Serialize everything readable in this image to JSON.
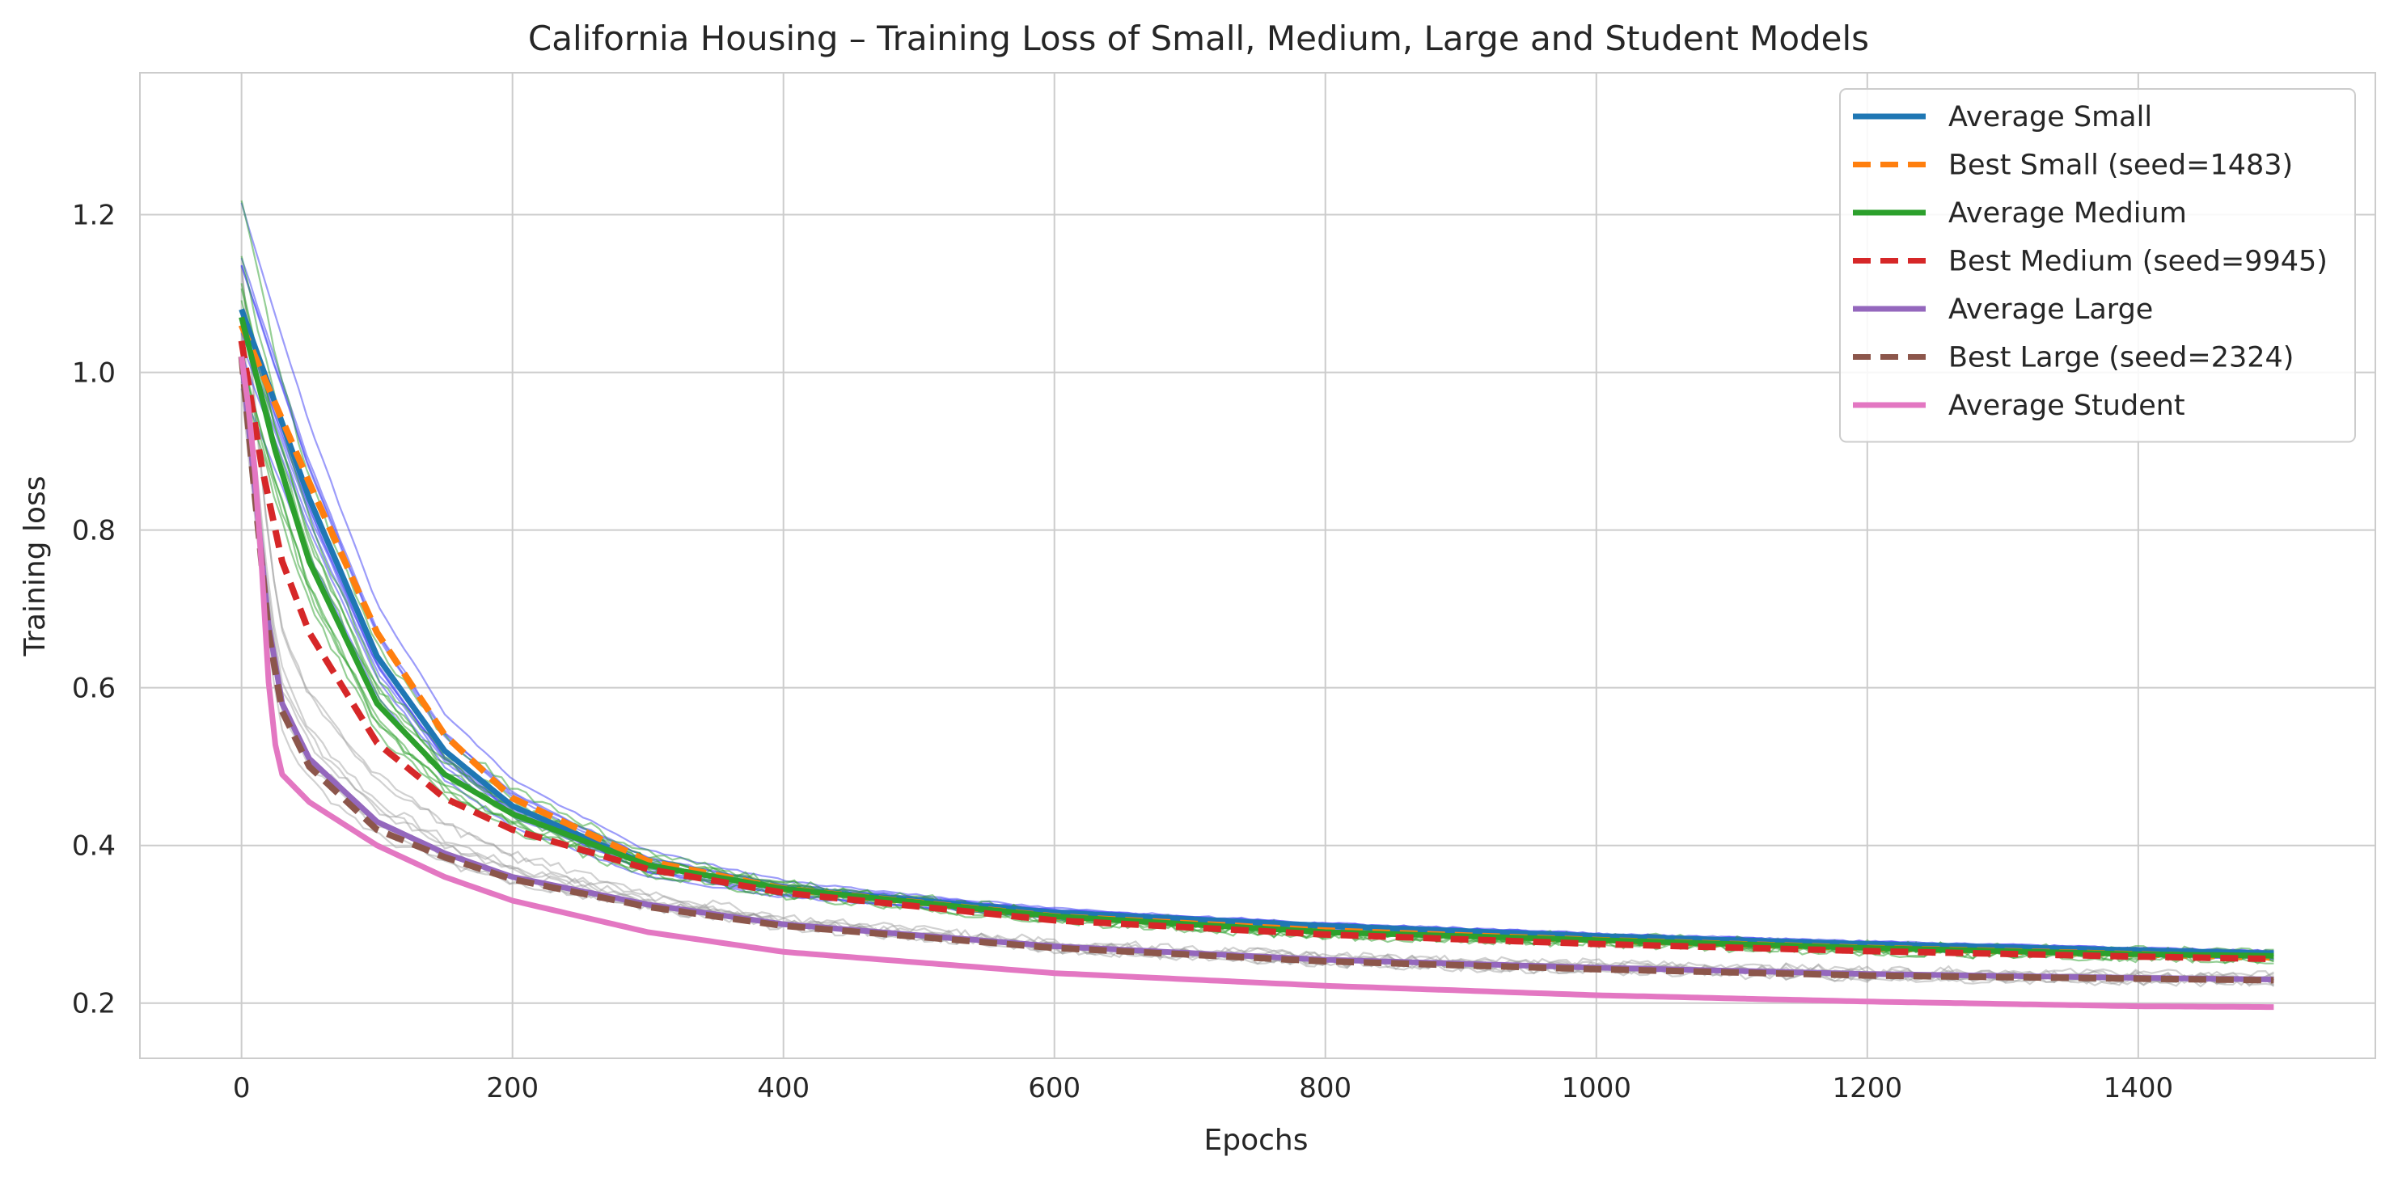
{
  "chart_data": {
    "type": "line",
    "title": "California Housing – Training Loss of Small, Medium, Large and Student Models",
    "xlabel": "Epochs",
    "ylabel": "Training loss",
    "xlim": [
      -75,
      1575
    ],
    "ylim": [
      0.13,
      1.38
    ],
    "xticks": [
      0,
      200,
      400,
      600,
      800,
      1000,
      1200,
      1400
    ],
    "yticks": [
      0.2,
      0.4,
      0.6,
      0.8,
      1.0,
      1.2
    ],
    "xtick_labels": [
      "0",
      "200",
      "400",
      "600",
      "800",
      "1000",
      "1200",
      "1400"
    ],
    "ytick_labels": [
      "0.2",
      "0.4",
      "0.6",
      "0.8",
      "1.0",
      "1.2"
    ],
    "grid": true,
    "legend_position": "top-right",
    "series": [
      {
        "name": "Average Small",
        "color": "#1f77b4",
        "style": "solid",
        "x": [
          0,
          50,
          100,
          150,
          200,
          300,
          400,
          600,
          800,
          1000,
          1200,
          1400,
          1500
        ],
        "y": [
          1.08,
          0.84,
          0.64,
          0.52,
          0.45,
          0.375,
          0.345,
          0.315,
          0.298,
          0.285,
          0.275,
          0.267,
          0.263
        ]
      },
      {
        "name": "Best Small (seed=1483)",
        "color": "#ff7f0e",
        "style": "dashed",
        "x": [
          0,
          50,
          100,
          150,
          200,
          300,
          400,
          600,
          800,
          1000,
          1200,
          1400,
          1500
        ],
        "y": [
          1.06,
          0.86,
          0.67,
          0.54,
          0.46,
          0.38,
          0.345,
          0.31,
          0.292,
          0.28,
          0.27,
          0.262,
          0.258
        ]
      },
      {
        "name": "Average Medium",
        "color": "#2ca02c",
        "style": "solid",
        "x": [
          0,
          25,
          50,
          100,
          150,
          200,
          300,
          400,
          600,
          800,
          1000,
          1200,
          1400,
          1500
        ],
        "y": [
          1.07,
          0.9,
          0.76,
          0.58,
          0.49,
          0.44,
          0.375,
          0.345,
          0.31,
          0.29,
          0.28,
          0.27,
          0.262,
          0.26
        ]
      },
      {
        "name": "Best Medium (seed=9945)",
        "color": "#d62728",
        "style": "dashed",
        "x": [
          0,
          15,
          30,
          50,
          100,
          150,
          200,
          300,
          400,
          600,
          800,
          1000,
          1200,
          1400,
          1500
        ],
        "y": [
          1.04,
          0.88,
          0.76,
          0.67,
          0.53,
          0.46,
          0.42,
          0.37,
          0.34,
          0.305,
          0.287,
          0.275,
          0.266,
          0.259,
          0.256
        ]
      },
      {
        "name": "Average Large",
        "color": "#9467bd",
        "style": "solid",
        "x": [
          0,
          10,
          20,
          30,
          50,
          100,
          150,
          200,
          300,
          400,
          600,
          800,
          1000,
          1200,
          1400,
          1500
        ],
        "y": [
          1.02,
          0.85,
          0.68,
          0.58,
          0.51,
          0.43,
          0.39,
          0.36,
          0.325,
          0.3,
          0.272,
          0.255,
          0.245,
          0.237,
          0.232,
          0.23
        ]
      },
      {
        "name": "Best Large (seed=2324)",
        "color": "#8c564b",
        "style": "dashed",
        "x": [
          0,
          10,
          20,
          30,
          50,
          100,
          150,
          200,
          300,
          400,
          600,
          800,
          1000,
          1200,
          1400,
          1500
        ],
        "y": [
          1.02,
          0.84,
          0.67,
          0.57,
          0.5,
          0.42,
          0.385,
          0.357,
          0.322,
          0.298,
          0.27,
          0.253,
          0.243,
          0.235,
          0.231,
          0.229
        ]
      },
      {
        "name": "Average Student",
        "color": "#e377c2",
        "style": "solid",
        "x": [
          0,
          8,
          15,
          22,
          30,
          50,
          100,
          150,
          200,
          300,
          400,
          600,
          800,
          1000,
          1200,
          1400,
          1500
        ],
        "y": [
          1.02,
          0.92,
          0.75,
          0.55,
          0.49,
          0.455,
          0.4,
          0.36,
          0.33,
          0.29,
          0.265,
          0.238,
          0.222,
          0.21,
          0.202,
          0.196,
          0.195
        ]
      }
    ]
  }
}
